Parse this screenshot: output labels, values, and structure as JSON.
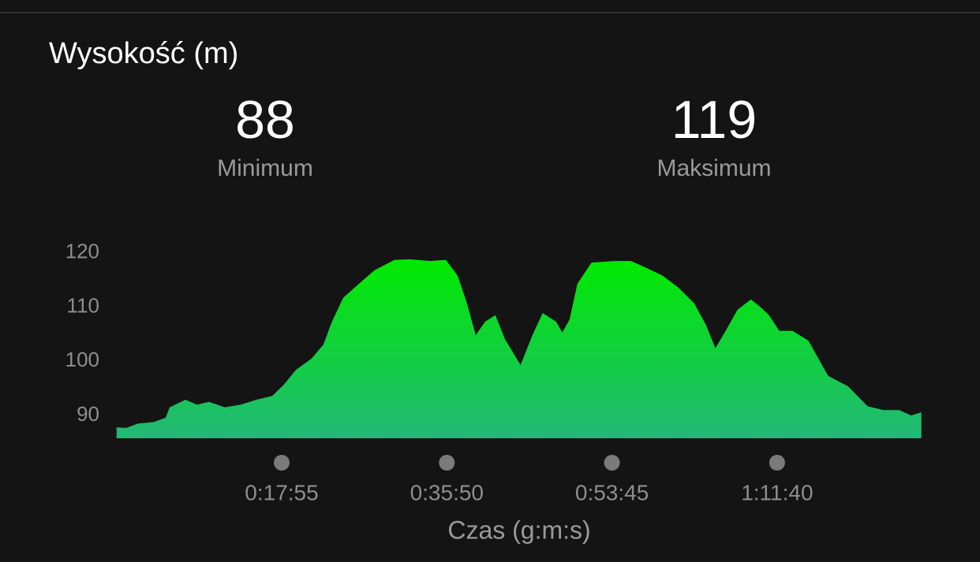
{
  "stats": [
    {
      "value": 88,
      "label": "Minimum"
    },
    {
      "value": 119,
      "label": "Maksimum"
    }
  ],
  "chart_data": {
    "type": "area",
    "title": "Wysokość (m)",
    "x_label": "Czas (g:m:s)",
    "x": [
      0,
      63,
      140,
      243,
      320,
      346,
      448,
      525,
      602,
      705,
      808,
      910,
      1013,
      1090,
      1167,
      1270,
      1347,
      1398,
      1475,
      1578,
      1680,
      1809,
      1912,
      2040,
      2143,
      2220,
      2281,
      2338,
      2399,
      2466,
      2528,
      2630,
      2707,
      2774,
      2861,
      2902,
      2949,
      3000,
      3092,
      3246,
      3349,
      3451,
      3554,
      3657,
      3760,
      3837,
      3898,
      3965,
      4042,
      4129,
      4196,
      4247,
      4314,
      4401,
      4504,
      4632,
      4761,
      4889,
      4992,
      5095,
      5172,
      5239
    ],
    "values": [
      87.8,
      87.7,
      88.5,
      88.8,
      89.6,
      91.5,
      92.9,
      92.0,
      92.5,
      91.5,
      92.0,
      92.9,
      93.6,
      95.7,
      98.4,
      100.5,
      103.1,
      107.0,
      111.7,
      114.3,
      116.8,
      118.7,
      118.8,
      118.5,
      118.7,
      115.8,
      110.7,
      104.8,
      107.3,
      108.5,
      104.1,
      99.3,
      104.8,
      108.9,
      107.3,
      105.3,
      107.7,
      114.3,
      118.2,
      118.5,
      118.5,
      117.2,
      115.8,
      113.6,
      110.7,
      106.7,
      102.4,
      105.6,
      109.5,
      111.4,
      109.9,
      108.5,
      105.6,
      105.6,
      103.8,
      97.3,
      95.4,
      91.7,
      91.0,
      91.0,
      90.0,
      90.6
    ],
    "xlim": [
      0,
      5240
    ],
    "ylim": [
      85.8,
      122
    ],
    "xticks": [
      {
        "value": 1075,
        "label": "0:17:55"
      },
      {
        "value": 2150,
        "label": "0:35:50"
      },
      {
        "value": 3225,
        "label": "0:53:45"
      },
      {
        "value": 4300,
        "label": "1:11:40"
      }
    ],
    "yticks": [
      90,
      100,
      110,
      120
    ],
    "gradient": [
      "#00ea00",
      "#22b877"
    ]
  }
}
